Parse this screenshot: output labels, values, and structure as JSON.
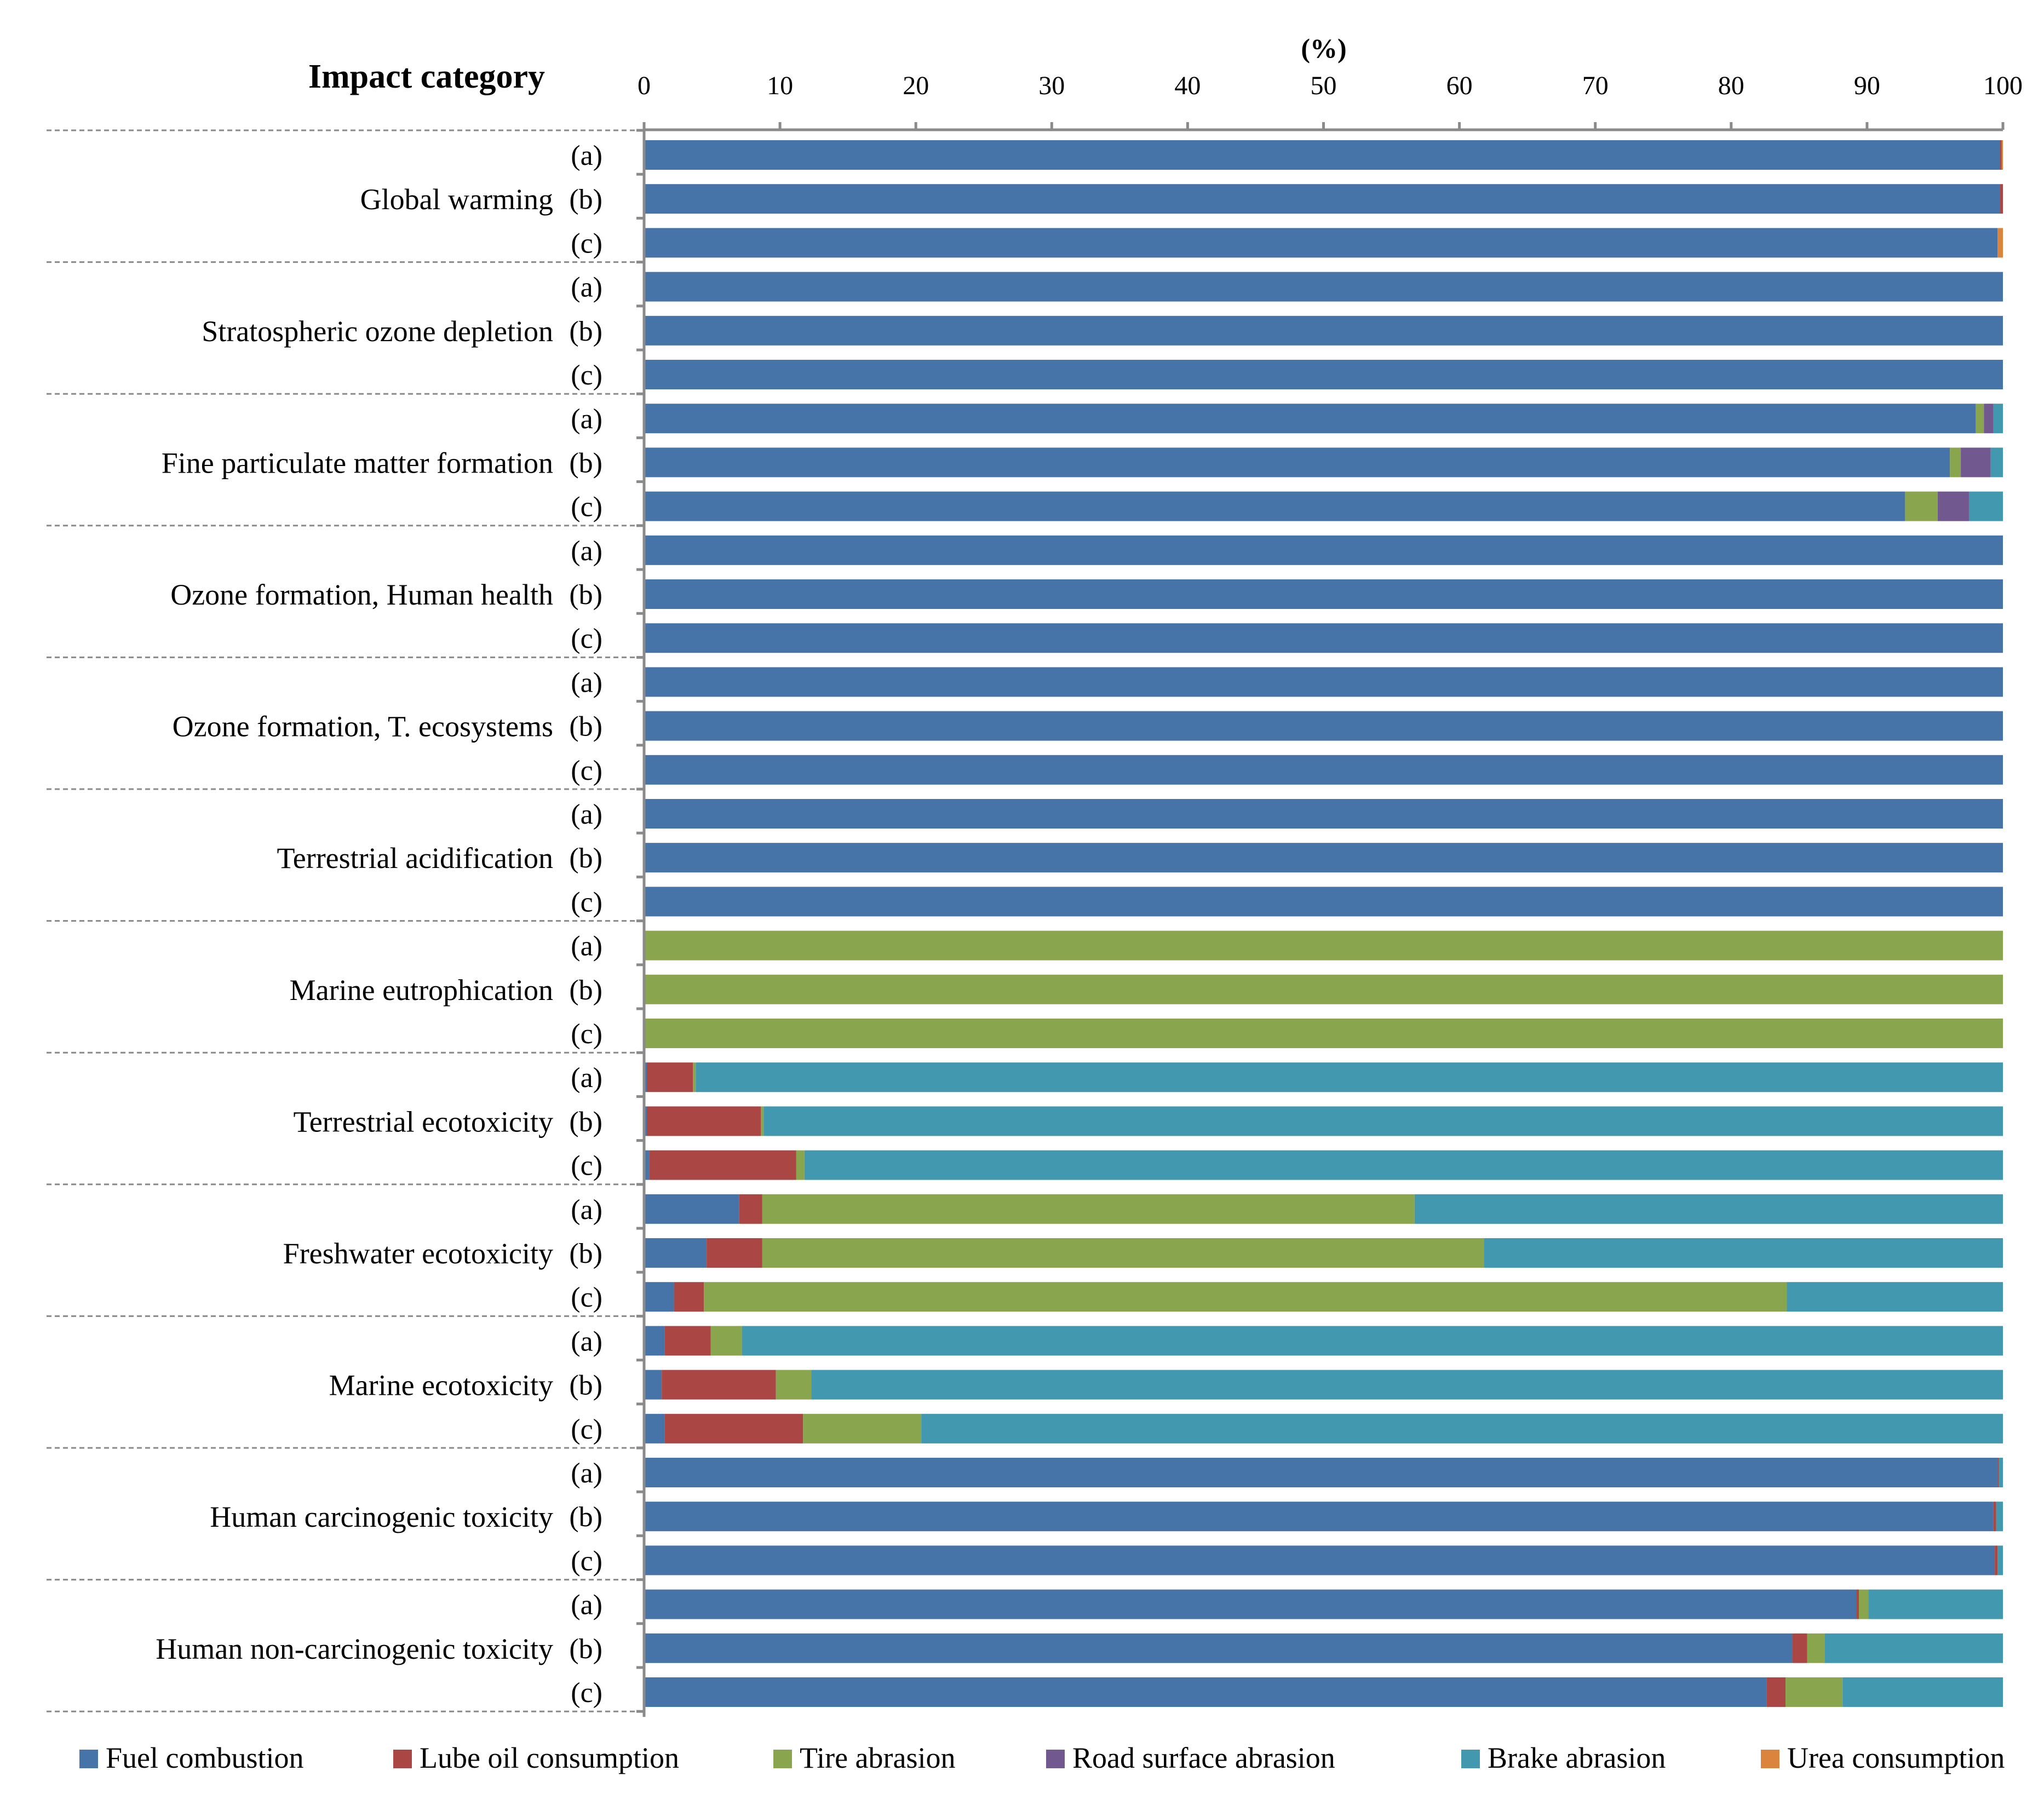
{
  "chart_data": {
    "type": "bar",
    "orientation": "horizontal",
    "stacked": true,
    "title": "",
    "xlabel": "(%)",
    "ylabel": "Impact category",
    "xlim": [
      0,
      100
    ],
    "x_ticks": [
      "0",
      "10",
      "20",
      "30",
      "40",
      "50",
      "60",
      "70",
      "80",
      "90",
      "100"
    ],
    "legend_position": "bottom",
    "series": [
      {
        "name": "Fuel combustion",
        "color": "#4674A9"
      },
      {
        "name": "Lube oil consumption",
        "color": "#AA4643"
      },
      {
        "name": "Tire abrasion",
        "color": "#89A54E"
      },
      {
        "name": "Road surface abrasion",
        "color": "#71588F"
      },
      {
        "name": "Brake abrasion",
        "color": "#4198AF"
      },
      {
        "name": "Urea consumption",
        "color": "#DB843D"
      }
    ],
    "categories": [
      {
        "name": "Global warming",
        "rows": [
          {
            "label": "(a)",
            "values": [
              99.8,
              0.1,
              0,
              0,
              0,
              0.1
            ]
          },
          {
            "label": "(b)",
            "values": [
              99.8,
              0.2,
              0,
              0,
              0,
              0
            ]
          },
          {
            "label": "(c)",
            "values": [
              99.6,
              0,
              0,
              0,
              0,
              0.4
            ]
          }
        ]
      },
      {
        "name": "Stratospheric ozone depletion",
        "rows": [
          {
            "label": "(a)",
            "values": [
              100,
              0,
              0,
              0,
              0,
              0
            ]
          },
          {
            "label": "(b)",
            "values": [
              100,
              0,
              0,
              0,
              0,
              0
            ]
          },
          {
            "label": "(c)",
            "values": [
              100,
              0,
              0,
              0,
              0,
              0
            ]
          }
        ]
      },
      {
        "name": "Fine particulate matter formation",
        "rows": [
          {
            "label": "(a)",
            "values": [
              98.0,
              0,
              0.6,
              0.7,
              0.7,
              0
            ]
          },
          {
            "label": "(b)",
            "values": [
              96.1,
              0,
              0.8,
              2.2,
              0.9,
              0
            ]
          },
          {
            "label": "(c)",
            "values": [
              92.8,
              0,
              2.4,
              2.3,
              2.5,
              0
            ]
          }
        ]
      },
      {
        "name": "Ozone formation, Human health",
        "rows": [
          {
            "label": "(a)",
            "values": [
              100,
              0,
              0,
              0,
              0,
              0
            ]
          },
          {
            "label": "(b)",
            "values": [
              100,
              0,
              0,
              0,
              0,
              0
            ]
          },
          {
            "label": "(c)",
            "values": [
              100,
              0,
              0,
              0,
              0,
              0
            ]
          }
        ]
      },
      {
        "name": "Ozone formation, T. ecosystems",
        "rows": [
          {
            "label": "(a)",
            "values": [
              100,
              0,
              0,
              0,
              0,
              0
            ]
          },
          {
            "label": "(b)",
            "values": [
              100,
              0,
              0,
              0,
              0,
              0
            ]
          },
          {
            "label": "(c)",
            "values": [
              100,
              0,
              0,
              0,
              0,
              0
            ]
          }
        ]
      },
      {
        "name": "Terrestrial acidification",
        "rows": [
          {
            "label": "(a)",
            "values": [
              100,
              0,
              0,
              0,
              0,
              0
            ]
          },
          {
            "label": "(b)",
            "values": [
              100,
              0,
              0,
              0,
              0,
              0
            ]
          },
          {
            "label": "(c)",
            "values": [
              100,
              0,
              0,
              0,
              0,
              0
            ]
          }
        ]
      },
      {
        "name": "Marine eutrophication",
        "rows": [
          {
            "label": "(a)",
            "values": [
              0,
              0,
              100,
              0,
              0,
              0
            ]
          },
          {
            "label": "(b)",
            "values": [
              0,
              0,
              100,
              0,
              0,
              0
            ]
          },
          {
            "label": "(c)",
            "values": [
              0,
              0,
              100,
              0,
              0,
              0
            ]
          }
        ]
      },
      {
        "name": "Terrestrial ecotoxicity",
        "rows": [
          {
            "label": "(a)",
            "values": [
              0.2,
              3.4,
              0.2,
              0,
              96.2,
              0
            ]
          },
          {
            "label": "(b)",
            "values": [
              0.2,
              8.4,
              0.2,
              0,
              91.2,
              0
            ]
          },
          {
            "label": "(c)",
            "values": [
              0.4,
              10.8,
              0.6,
              0,
              88.2,
              0
            ]
          }
        ]
      },
      {
        "name": "Freshwater ecotoxicity",
        "rows": [
          {
            "label": "(a)",
            "values": [
              7.0,
              1.7,
              48.0,
              0,
              43.3,
              0
            ]
          },
          {
            "label": "(b)",
            "values": [
              4.6,
              4.1,
              53.1,
              0,
              38.2,
              0
            ]
          },
          {
            "label": "(c)",
            "values": [
              2.2,
              2.2,
              79.7,
              0,
              15.9,
              0
            ]
          }
        ]
      },
      {
        "name": "Marine ecotoxicity",
        "rows": [
          {
            "label": "(a)",
            "values": [
              1.5,
              3.4,
              2.3,
              0,
              92.8,
              0
            ]
          },
          {
            "label": "(b)",
            "values": [
              1.3,
              8.4,
              2.6,
              0,
              87.7,
              0
            ]
          },
          {
            "label": "(c)",
            "values": [
              1.5,
              10.2,
              8.7,
              0,
              79.6,
              0
            ]
          }
        ]
      },
      {
        "name": "Human carcinogenic toxicity",
        "rows": [
          {
            "label": "(a)",
            "values": [
              99.6,
              0.1,
              0,
              0,
              0.3,
              0
            ]
          },
          {
            "label": "(b)",
            "values": [
              99.3,
              0.2,
              0,
              0,
              0.5,
              0
            ]
          },
          {
            "label": "(c)",
            "values": [
              99.4,
              0.2,
              0,
              0,
              0.4,
              0
            ]
          }
        ]
      },
      {
        "name": "Human non-carcinogenic toxicity",
        "rows": [
          {
            "label": "(a)",
            "values": [
              89.2,
              0.2,
              0.7,
              0,
              9.9,
              0
            ]
          },
          {
            "label": "(b)",
            "values": [
              84.5,
              1.1,
              1.3,
              0,
              13.1,
              0
            ]
          },
          {
            "label": "(c)",
            "values": [
              82.6,
              1.4,
              4.2,
              0,
              11.8,
              0
            ]
          }
        ]
      }
    ]
  }
}
